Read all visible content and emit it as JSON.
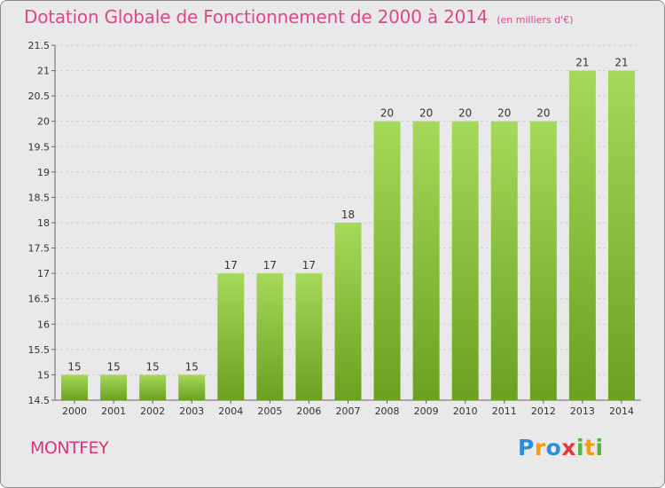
{
  "header": {
    "title": "Dotation Globale de Fonctionnement de 2000 à 2014",
    "subtitle": "(en milliers d'€)"
  },
  "footer": {
    "commune": "MONTFEY",
    "logo_text": "Proxiti"
  },
  "colors": {
    "bar_top": "#a6d95b",
    "bar_bottom": "#6ba020",
    "title": "#e0468a",
    "axis_text": "#333333",
    "grid": "#cfcfcf"
  },
  "chart_data": {
    "type": "bar",
    "title": "Dotation Globale de Fonctionnement de 2000 à 2014",
    "subtitle": "(en milliers d'€)",
    "xlabel": "",
    "ylabel": "",
    "categories": [
      "2000",
      "2001",
      "2002",
      "2003",
      "2004",
      "2005",
      "2006",
      "2007",
      "2008",
      "2009",
      "2010",
      "2011",
      "2012",
      "2013",
      "2014"
    ],
    "values": [
      15,
      15,
      15,
      15,
      17,
      17,
      17,
      18,
      20,
      20,
      20,
      20,
      20,
      21,
      21
    ],
    "data_labels": [
      "15",
      "15",
      "15",
      "15",
      "17",
      "17",
      "17",
      "18",
      "20",
      "20",
      "20",
      "20",
      "20",
      "21",
      "21"
    ],
    "ylim": [
      14.5,
      21.5
    ],
    "yticks": [
      14.5,
      15,
      15.5,
      16,
      16.5,
      17,
      17.5,
      18,
      18.5,
      19,
      19.5,
      20,
      20.5,
      21,
      21.5
    ],
    "ytick_labels": [
      "14.5",
      "15",
      "15.5",
      "16",
      "16.5",
      "17",
      "17.5",
      "18",
      "18.5",
      "19",
      "19.5",
      "20",
      "20.5",
      "21",
      "21.5"
    ],
    "grid": true,
    "legend": "none"
  }
}
